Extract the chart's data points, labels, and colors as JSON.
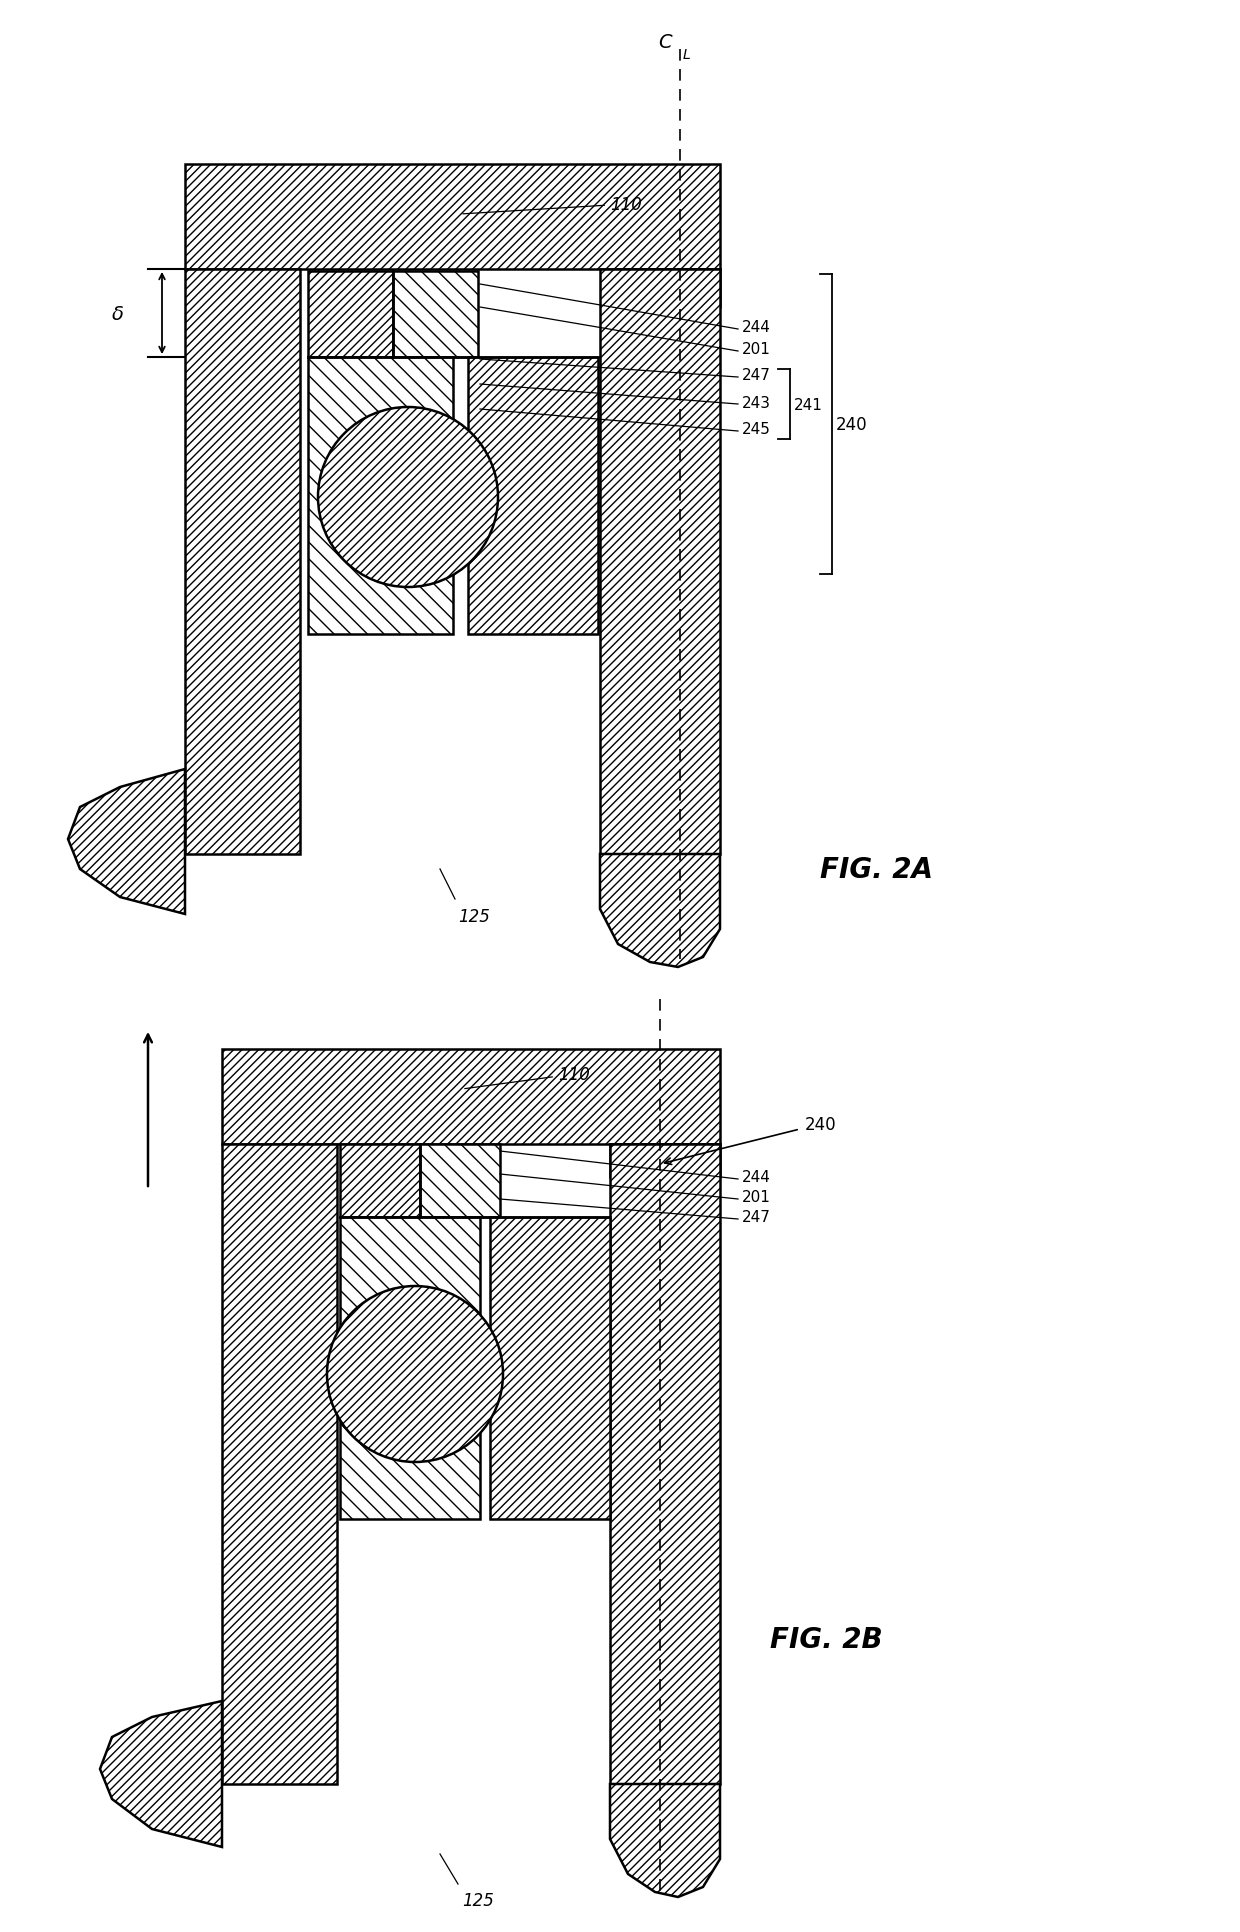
{
  "fig2a_title": "FIG. 2A",
  "fig2b_title": "FIG. 2B",
  "delta_label": "δ",
  "background_color": "#ffffff"
}
